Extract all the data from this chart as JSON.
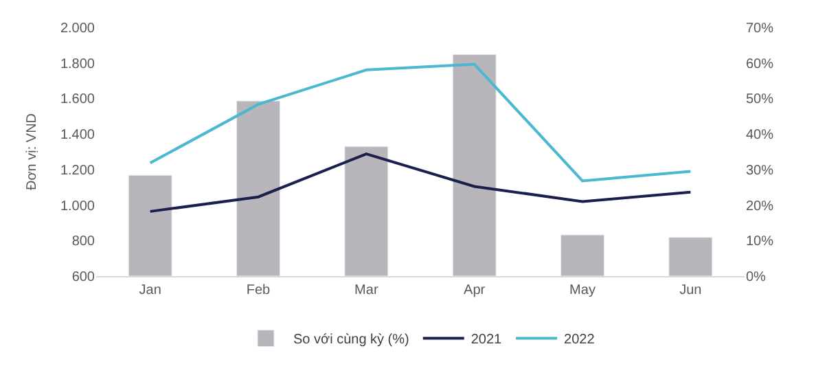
{
  "chart_data": {
    "type": "line",
    "ylabel": "Đơn vị: VND",
    "categories": [
      "Jan",
      "Feb",
      "Mar",
      "Apr",
      "May",
      "Jun"
    ],
    "series": [
      {
        "name": "So với cùng kỳ (%)",
        "type": "bar",
        "axis": "y2",
        "color": "#b8b5bb",
        "values": [
          28.4,
          49.3,
          36.5,
          62.4,
          11.6,
          10.9
        ]
      },
      {
        "name": "2021",
        "color": "#1a1f4e",
        "values": [
          964,
          1046,
          1288,
          1105,
          1020,
          1073
        ]
      },
      {
        "name": "2022",
        "color": "#4ab8d0",
        "values": [
          1237,
          1567,
          1761,
          1793,
          1136,
          1190
        ]
      }
    ],
    "ylim": [
      600,
      2000
    ],
    "yticks": [
      {
        "value": 600,
        "label": "600"
      },
      {
        "value": 800,
        "label": "800"
      },
      {
        "value": 1000,
        "label": "1.000"
      },
      {
        "value": 1200,
        "label": "1.200"
      },
      {
        "value": 1400,
        "label": "1.400"
      },
      {
        "value": 1600,
        "label": "1.600"
      },
      {
        "value": 1800,
        "label": "1.800"
      },
      {
        "value": 2000,
        "label": "2.000"
      }
    ],
    "y2lim": [
      0,
      70
    ],
    "y2ticks": [
      {
        "value": 0,
        "label": "0%"
      },
      {
        "value": 10,
        "label": "10%"
      },
      {
        "value": 20,
        "label": "20%"
      },
      {
        "value": 30,
        "label": "30%"
      },
      {
        "value": 40,
        "label": "40%"
      },
      {
        "value": 50,
        "label": "50%"
      },
      {
        "value": 60,
        "label": "60%"
      },
      {
        "value": 70,
        "label": "70%"
      }
    ],
    "legend": "bottom",
    "line_style": "solid",
    "marker": "none"
  }
}
